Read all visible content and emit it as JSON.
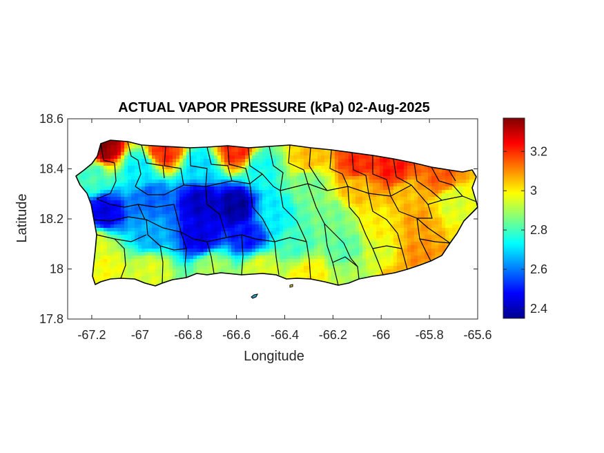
{
  "chart_data": {
    "type": "heatmap",
    "title": "ACTUAL VAPOR PRESSURE (kPa) 02-Aug-2025",
    "xlabel": "Longitude",
    "ylabel": "Latitude",
    "xlim": [
      -67.3,
      -65.6
    ],
    "ylim": [
      17.8,
      18.6
    ],
    "x_ticks": [
      -67.2,
      -67,
      -66.8,
      -66.6,
      -66.4,
      -66.2,
      -66,
      -65.8,
      -65.6
    ],
    "x_tick_labels": [
      "-67.2",
      "-67",
      "-66.8",
      "-66.6",
      "-66.4",
      "-66.2",
      "-66",
      "-65.8",
      "-65.6"
    ],
    "y_ticks": [
      17.8,
      18,
      18.2,
      18.4,
      18.6
    ],
    "y_tick_labels": [
      "17.8",
      "18",
      "18.2",
      "18.4",
      "18.6"
    ],
    "colorbar": {
      "colormap": "jet",
      "range": [
        2.35,
        3.37
      ],
      "ticks": [
        2.4,
        2.6,
        2.8,
        3,
        3.2
      ],
      "tick_labels": [
        "2.4",
        "2.6",
        "2.8",
        "3",
        "3.2"
      ]
    },
    "grid": false,
    "region": "Puerto Rico municipalities",
    "field_samples": [
      {
        "lon": -67.15,
        "lat": 18.49,
        "value": 3.35
      },
      {
        "lon": -66.9,
        "lat": 18.47,
        "value": 3.2
      },
      {
        "lon": -66.6,
        "lat": 18.47,
        "value": 3.2
      },
      {
        "lon": -66.3,
        "lat": 18.44,
        "value": 3.05
      },
      {
        "lon": -66.1,
        "lat": 18.42,
        "value": 3.2
      },
      {
        "lon": -65.95,
        "lat": 18.4,
        "value": 3.22
      },
      {
        "lon": -65.75,
        "lat": 18.37,
        "value": 3.15
      },
      {
        "lon": -67.2,
        "lat": 18.37,
        "value": 2.8
      },
      {
        "lon": -67.0,
        "lat": 18.4,
        "value": 2.72
      },
      {
        "lon": -66.75,
        "lat": 18.4,
        "value": 2.7
      },
      {
        "lon": -66.5,
        "lat": 18.4,
        "value": 2.75
      },
      {
        "lon": -66.3,
        "lat": 18.34,
        "value": 2.85
      },
      {
        "lon": -66.1,
        "lat": 18.32,
        "value": 3.05
      },
      {
        "lon": -65.9,
        "lat": 18.3,
        "value": 3.05
      },
      {
        "lon": -65.7,
        "lat": 18.27,
        "value": 2.95
      },
      {
        "lon": -67.15,
        "lat": 18.22,
        "value": 2.45
      },
      {
        "lon": -66.95,
        "lat": 18.28,
        "value": 2.58
      },
      {
        "lon": -66.75,
        "lat": 18.27,
        "value": 2.42
      },
      {
        "lon": -66.6,
        "lat": 18.25,
        "value": 2.38
      },
      {
        "lon": -66.45,
        "lat": 18.22,
        "value": 2.72
      },
      {
        "lon": -66.2,
        "lat": 18.2,
        "value": 2.85
      },
      {
        "lon": -66.0,
        "lat": 18.18,
        "value": 3.0
      },
      {
        "lon": -65.85,
        "lat": 18.18,
        "value": 3.08
      },
      {
        "lon": -67.18,
        "lat": 18.1,
        "value": 2.95
      },
      {
        "lon": -66.95,
        "lat": 18.13,
        "value": 2.65
      },
      {
        "lon": -66.75,
        "lat": 18.13,
        "value": 2.45
      },
      {
        "lon": -66.55,
        "lat": 18.13,
        "value": 2.5
      },
      {
        "lon": -66.35,
        "lat": 18.1,
        "value": 2.8
      },
      {
        "lon": -66.15,
        "lat": 18.08,
        "value": 2.82
      },
      {
        "lon": -66.0,
        "lat": 18.05,
        "value": 2.95
      },
      {
        "lon": -65.85,
        "lat": 18.05,
        "value": 3.1
      },
      {
        "lon": -67.15,
        "lat": 18.0,
        "value": 2.98
      },
      {
        "lon": -66.95,
        "lat": 18.0,
        "value": 2.95
      },
      {
        "lon": -66.7,
        "lat": 18.0,
        "value": 2.9
      },
      {
        "lon": -66.5,
        "lat": 18.0,
        "value": 2.95
      },
      {
        "lon": -66.3,
        "lat": 17.98,
        "value": 3.0
      },
      {
        "lon": -66.1,
        "lat": 17.98,
        "value": 2.9
      },
      {
        "lon": -65.95,
        "lat": 17.98,
        "value": 3.05
      }
    ]
  }
}
